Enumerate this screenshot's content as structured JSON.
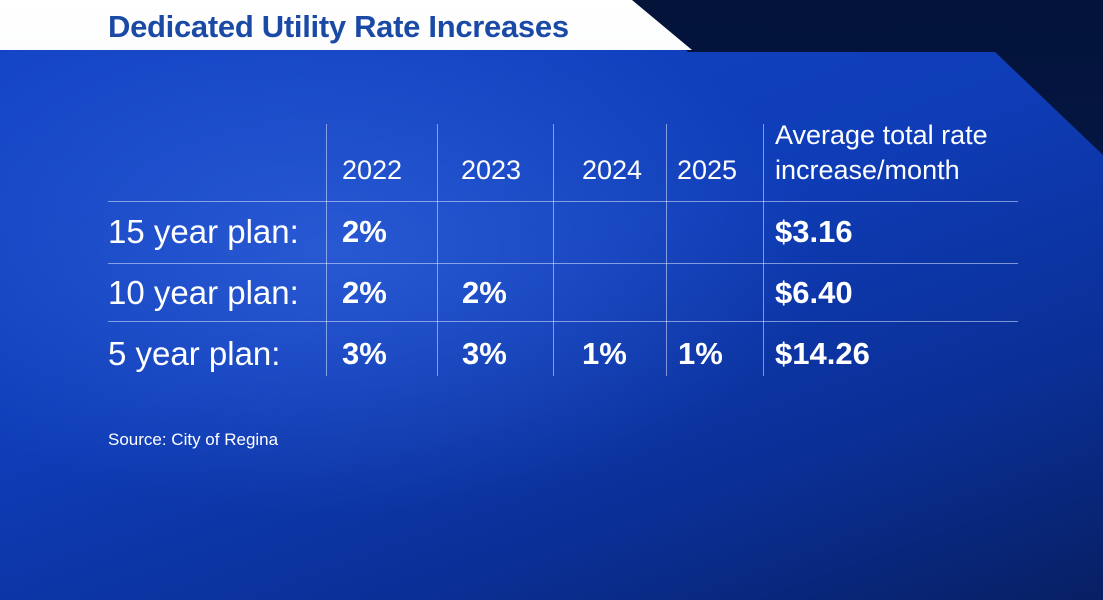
{
  "title": "Dedicated Utility Rate Increases",
  "source": "Source: City of Regina",
  "chart_data": {
    "type": "table",
    "columns": [
      "",
      "2022",
      "2023",
      "2024",
      "2025",
      "Average total rate increase/month"
    ],
    "column_header_lines": {
      "average_line1": "Average total rate",
      "average_line2": "increase/month"
    },
    "rows": [
      {
        "label": "15 year plan:",
        "2022": "2%",
        "2023": "",
        "2024": "",
        "2025": "",
        "average": "$3.16"
      },
      {
        "label": "10 year plan:",
        "2022": "2%",
        "2023": "2%",
        "2024": "",
        "2025": "",
        "average": "$6.40"
      },
      {
        "label": "5 year plan:",
        "2022": "3%",
        "2023": "3%",
        "2024": "1%",
        "2025": "1%",
        "average": "$14.26"
      }
    ]
  }
}
